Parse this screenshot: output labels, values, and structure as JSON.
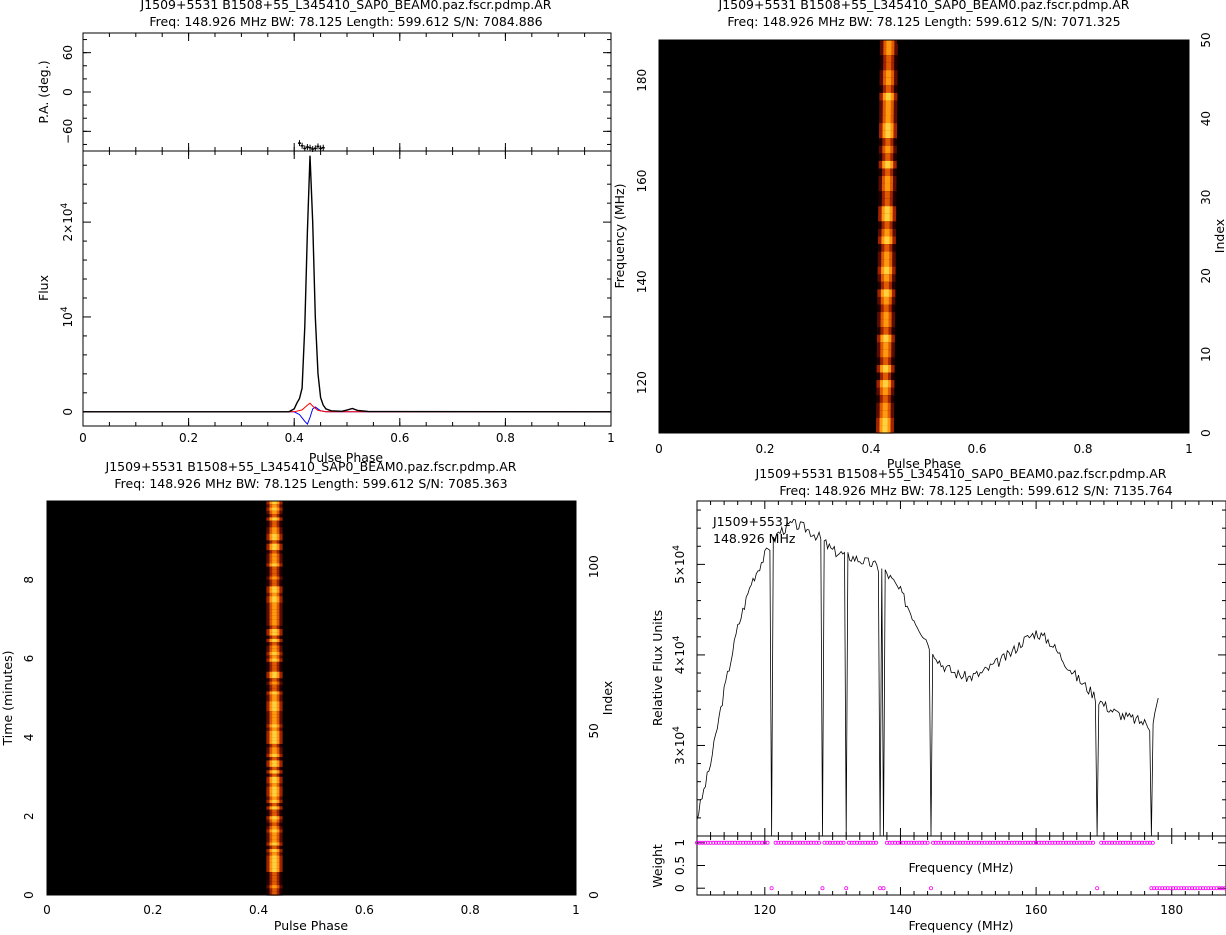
{
  "panels": {
    "tl": {
      "title1": "J1509+5531  B1508+55_L345410_SAP0_BEAM0.paz.fscr.pdmp.AR",
      "title2": "Freq: 148.926 MHz  BW: 78.125  Length: 599.612  S/N: 7084.886",
      "xlabel": "Pulse Phase",
      "ylabel_top": "P.A. (deg.)",
      "ylabel_bottom": "Flux"
    },
    "tr": {
      "title1": "J1509+5531  B1508+55_L345410_SAP0_BEAM0.paz.fscr.pdmp.AR",
      "title2": "Freq: 148.926 MHz  BW: 78.125  Length: 599.612  S/N: 7071.325",
      "xlabel": "Pulse Phase",
      "ylabel": "Frequency (MHz)",
      "ylabel_right": "Index"
    },
    "bl": {
      "title1": "J1509+5531  B1508+55_L345410_SAP0_BEAM0.paz.fscr.pdmp.AR",
      "title2": "Freq: 148.926 MHz  BW: 78.125  Length: 599.612  S/N: 7085.363",
      "xlabel": "Pulse Phase",
      "ylabel": "Time (minutes)",
      "ylabel_right": "Index"
    },
    "br": {
      "title1": "J1509+5531  B1508+55_L345410_SAP0_BEAM0.paz.fscr.pdmp.AR",
      "title2": "Freq: 148.926 MHz  BW: 78.125  Length: 599.612  S/N: 7135.764",
      "annotation1": "J1509+5531",
      "annotation2": "148.926  MHz",
      "ylabel_top": "Relative Flux Units",
      "ylabel_bottom": "Weight",
      "xlabel_inner": "Frequency (MHz)",
      "xlabel": "Frequency (MHz)"
    }
  },
  "chart_data": [
    {
      "type": "line",
      "panel": "tl-pa",
      "ylabel": "P.A. (deg.)",
      "xlim": [
        0,
        1
      ],
      "ylim": [
        -90,
        90
      ],
      "yticks": [
        -60,
        0,
        60
      ],
      "points": [
        [
          0.41,
          -78
        ],
        [
          0.415,
          -82
        ],
        [
          0.42,
          -86
        ],
        [
          0.425,
          -84
        ],
        [
          0.43,
          -85
        ],
        [
          0.435,
          -87
        ],
        [
          0.44,
          -86
        ],
        [
          0.445,
          -83
        ],
        [
          0.45,
          -86
        ],
        [
          0.455,
          -85
        ]
      ]
    },
    {
      "type": "line",
      "panel": "tl-profile",
      "xlabel": "Pulse Phase",
      "ylabel": "Flux",
      "xlim": [
        0,
        1
      ],
      "ylim": [
        -1500,
        27500
      ],
      "xticks": [
        0,
        0.2,
        0.4,
        0.6,
        0.8,
        1
      ],
      "ytick_labels": [
        "0",
        "10^4",
        "2×10^4"
      ],
      "series": [
        {
          "color": "#000000",
          "x": [
            0.0,
            0.39,
            0.4,
            0.405,
            0.41,
            0.415,
            0.42,
            0.425,
            0.43,
            0.435,
            0.44,
            0.445,
            0.45,
            0.455,
            0.46,
            0.47,
            0.49,
            0.5,
            0.51,
            0.52,
            0.54,
            1.0
          ],
          "values": [
            0,
            0,
            300,
            900,
            1400,
            2500,
            9000,
            19000,
            27000,
            20000,
            10000,
            4000,
            1500,
            700,
            300,
            100,
            50,
            180,
            350,
            150,
            30,
            0
          ]
        },
        {
          "color": "#ff0000",
          "x": [
            0.0,
            0.4,
            0.415,
            0.425,
            0.43,
            0.435,
            0.445,
            0.46,
            1.0
          ],
          "values": [
            0,
            0,
            200,
            700,
            900,
            600,
            150,
            0,
            0
          ]
        },
        {
          "color": "#0000ff",
          "x": [
            0.0,
            0.4,
            0.41,
            0.42,
            0.425,
            0.43,
            0.435,
            0.44,
            0.45,
            0.46,
            1.0
          ],
          "values": [
            0,
            0,
            -300,
            -1000,
            -1300,
            -600,
            300,
            500,
            100,
            0,
            0
          ]
        }
      ]
    },
    {
      "type": "heatmap",
      "panel": "tr",
      "xlabel": "Pulse Phase",
      "ylabel": "Frequency (MHz)",
      "xlim": [
        0,
        1
      ],
      "ylim": [
        110,
        188
      ],
      "xticks": [
        0,
        0.2,
        0.4,
        0.6,
        0.8,
        1
      ],
      "yticks": [
        120,
        140,
        160,
        180
      ],
      "right_axis": {
        "label": "Index",
        "lim": [
          0,
          50
        ],
        "ticks": [
          0,
          10,
          20,
          30,
          40,
          50
        ]
      },
      "peak_phase": 0.43,
      "colormap": "heat"
    },
    {
      "type": "heatmap",
      "panel": "bl",
      "xlabel": "Pulse Phase",
      "ylabel": "Time (minutes)",
      "xlim": [
        0,
        1
      ],
      "ylim": [
        0,
        10
      ],
      "xticks": [
        0,
        0.2,
        0.4,
        0.6,
        0.8,
        1
      ],
      "yticks": [
        0,
        2,
        4,
        6,
        8
      ],
      "right_axis": {
        "label": "Index",
        "lim": [
          0,
          120
        ],
        "ticks": [
          0,
          50,
          100
        ]
      },
      "peak_phase": 0.43,
      "colormap": "heat"
    },
    {
      "type": "line",
      "panel": "br-spectrum",
      "ylabel": "Relative Flux Units",
      "xlim": [
        110,
        188
      ],
      "ylim": [
        20000,
        57000
      ],
      "ytick_labels": [
        "3×10^4",
        "4×10^4",
        "5×10^4"
      ],
      "x": [
        110,
        112,
        114,
        116,
        118,
        120,
        122,
        124,
        126,
        128,
        130,
        132,
        134,
        136,
        138,
        140,
        142,
        144,
        146,
        148,
        150,
        152,
        154,
        156,
        158,
        160,
        162,
        164,
        166,
        168,
        170,
        172,
        174,
        176,
        177,
        178
      ],
      "values": [
        22000,
        28000,
        36000,
        43000,
        48000,
        51000,
        53500,
        54500,
        54000,
        53000,
        51500,
        51000,
        50500,
        50000,
        49000,
        47000,
        44000,
        41500,
        39000,
        38000,
        37500,
        38000,
        39000,
        40000,
        41500,
        42500,
        41500,
        39500,
        37500,
        36000,
        34500,
        33500,
        33000,
        32500,
        32000,
        35000
      ],
      "notches": [
        121,
        128.5,
        132,
        137,
        137.5,
        144.5,
        169,
        177
      ]
    },
    {
      "type": "scatter",
      "panel": "br-weight",
      "xlabel": "Frequency (MHz)",
      "ylabel": "Weight",
      "xlim": [
        110,
        188
      ],
      "ylim": [
        -0.15,
        1.15
      ],
      "xticks": [
        120,
        140,
        160,
        180
      ],
      "yticks": [
        0,
        0.5,
        1
      ],
      "ones_range": [
        110,
        177.5
      ],
      "zeros_at": [
        121,
        128.5,
        132,
        137,
        137.5,
        144.5,
        169
      ],
      "zeros_range": [
        177,
        188
      ],
      "color": "#ff00ff"
    }
  ]
}
